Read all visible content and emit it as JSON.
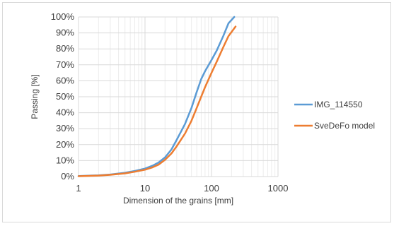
{
  "chart_data": {
    "type": "line",
    "title": "",
    "xlabel": "Dimension of the grains [mm]",
    "ylabel": "Passing [%]",
    "x_scale": "log",
    "xlim": [
      1,
      1000
    ],
    "ylim": [
      0,
      100
    ],
    "x_ticks": [
      {
        "value": 1,
        "label": "1"
      },
      {
        "value": 10,
        "label": "10"
      },
      {
        "value": 100,
        "label": "100"
      },
      {
        "value": 1000,
        "label": "1000"
      }
    ],
    "y_ticks": [
      {
        "value": 0,
        "label": "0%"
      },
      {
        "value": 10,
        "label": "10%"
      },
      {
        "value": 20,
        "label": "20%"
      },
      {
        "value": 30,
        "label": "30%"
      },
      {
        "value": 40,
        "label": "40%"
      },
      {
        "value": 50,
        "label": "50%"
      },
      {
        "value": 60,
        "label": "60%"
      },
      {
        "value": 70,
        "label": "70%"
      },
      {
        "value": 80,
        "label": "80%"
      },
      {
        "value": 90,
        "label": "90%"
      },
      {
        "value": 100,
        "label": "100%"
      }
    ],
    "grid": {
      "major": true,
      "minor_x": true
    },
    "legend_position": "right",
    "series": [
      {
        "name": "IMG_114550",
        "color": "#5b9bd5",
        "x": [
          1,
          2,
          3,
          5,
          7,
          10,
          13,
          16,
          20,
          25,
          30,
          40,
          50,
          60,
          70,
          80,
          100,
          120,
          150,
          180,
          220
        ],
        "y": [
          0.3,
          0.8,
          1.3,
          2.4,
          3.5,
          5,
          6.8,
          8.8,
          12,
          17,
          23,
          33,
          43,
          53,
          61,
          66,
          73,
          79,
          88,
          96,
          100
        ]
      },
      {
        "name": "SveDeFo model",
        "color": "#ed7d31",
        "x": [
          1,
          2,
          3,
          5,
          7,
          10,
          13,
          16,
          20,
          25,
          30,
          40,
          50,
          60,
          70,
          80,
          100,
          120,
          150,
          180,
          230
        ],
        "y": [
          0.2,
          0.6,
          1.1,
          2,
          3,
          4.3,
          5.8,
          7.5,
          10.5,
          14.5,
          19,
          27,
          35,
          43,
          50,
          56,
          65,
          72,
          81,
          88,
          94
        ]
      }
    ]
  }
}
